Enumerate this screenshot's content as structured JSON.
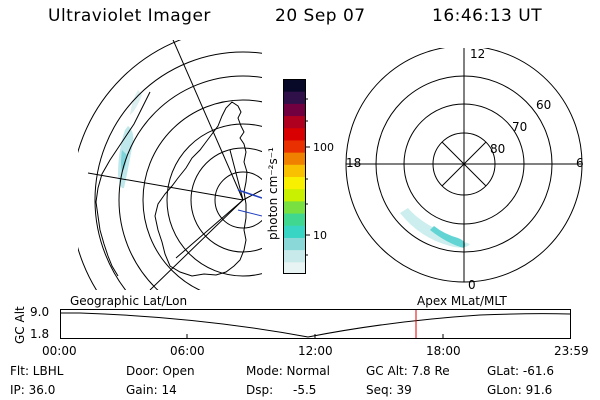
{
  "header": {
    "title": "Ultraviolet Imager",
    "date": "20 Sep 07",
    "time": "16:46:13 UT"
  },
  "colorbar": {
    "unit_label": "photon cm⁻²s⁻¹",
    "tick_100": "100",
    "tick_10": "10",
    "colors": [
      "#e8f4f4",
      "#c8eaea",
      "#8ad8d8",
      "#38d4c4",
      "#40d890",
      "#78e040",
      "#c8f000",
      "#f8f000",
      "#f8c000",
      "#f08000",
      "#e83000",
      "#d80000",
      "#b00020",
      "#700040",
      "#301048",
      "#080828"
    ]
  },
  "left_map": {
    "label": "Geographic Lat/Lon"
  },
  "polar_map": {
    "label": "Apex MLat/MLT",
    "mlt_12": "12",
    "mlt_18": "18",
    "mlt_6": "6",
    "mlt_0": "0",
    "lat_60": "60",
    "lat_70": "70",
    "lat_80": "80"
  },
  "altitude_plot": {
    "ylabel": "GC Alt",
    "y_ticks": [
      "9.0",
      "1.8"
    ],
    "x_ticks": [
      "00:00",
      "06:00",
      "12:00",
      "18:00",
      "23:59"
    ],
    "current_time_marker": "16:46",
    "marker_color": "#e00000"
  },
  "info": {
    "flt": "Flt: LBHL",
    "door": "Door: Open",
    "mode": "Mode: Normal",
    "gc_alt": "GC Alt: 7.8 Re",
    "glat": "GLat: -61.6",
    "ip": "IP: 36.0",
    "gain": "Gain: 14",
    "dsp_label": "Dsp:",
    "dsp_value": "-5.5",
    "seq": "Seq: 39",
    "glon": "GLon: 91.6"
  }
}
